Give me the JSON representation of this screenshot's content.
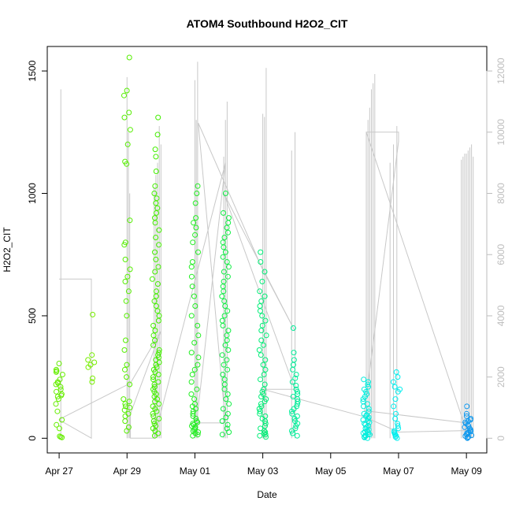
{
  "chart_data": {
    "type": "scatter",
    "title": "ATOM4 Southbound H2O2_CIT",
    "xlabel": "Date",
    "ylabel": "H2O2_CIT",
    "x_tick_labels": [
      "Apr 27",
      "Apr 29",
      "May 01",
      "May 03",
      "May 05",
      "May 07",
      "May 09"
    ],
    "x_tick_days": [
      0,
      2,
      4,
      6,
      8,
      10,
      12
    ],
    "xlim_days": [
      -0.35,
      12.6
    ],
    "ylim": [
      -60,
      1600
    ],
    "y_ticks": [
      0,
      500,
      1000,
      1500
    ],
    "y2_ticks": [
      0,
      2000,
      4000,
      6000,
      8000,
      10000,
      12000
    ],
    "y2_lim": [
      -480,
      12800
    ],
    "y2_color": "#bdbdbd",
    "grid": false,
    "point_series": [
      {
        "x_day": 0.0,
        "color": "#66ee00",
        "y_values": [
          5,
          8,
          3,
          40,
          55,
          75,
          110,
          140,
          160,
          170,
          175,
          180,
          190,
          200,
          210,
          220,
          225,
          230,
          240,
          260,
          270,
          275,
          280,
          305
        ]
      },
      {
        "x_day": 0.95,
        "color": "#77ee00",
        "y_values": [
          230,
          245,
          290,
          300,
          310,
          320,
          340,
          505
        ]
      },
      {
        "x_day": 2.0,
        "color": "#55ee00",
        "y_values": [
          30,
          45,
          70,
          90,
          100,
          115,
          125,
          130,
          140,
          150,
          160,
          220,
          250,
          280,
          300,
          360,
          400,
          500,
          560,
          600,
          640,
          660,
          690,
          730,
          790,
          800,
          890,
          1120,
          1130,
          1200,
          1260,
          1310,
          1330,
          1400,
          1420,
          1555
        ]
      },
      {
        "x_day": 2.85,
        "color": "#44ee00",
        "y_values": [
          10,
          20,
          30,
          40,
          50,
          60,
          70,
          80,
          90,
          100,
          110,
          120,
          130,
          140,
          150,
          160,
          170,
          180,
          190,
          200,
          210,
          220,
          230,
          240,
          250,
          260,
          270,
          280,
          290,
          300,
          310,
          320,
          330,
          340,
          350,
          360,
          380,
          400,
          420,
          440,
          460,
          480,
          500,
          520,
          540,
          560,
          580,
          600,
          630,
          650,
          680,
          700,
          730,
          760,
          790,
          820,
          850,
          880,
          900,
          920,
          940,
          960,
          980,
          1000,
          1030,
          1090,
          1150,
          1180,
          1240,
          1310
        ]
      },
      {
        "x_day": 4.0,
        "color": "#22ee22",
        "y_values": [
          10,
          15,
          20,
          25,
          30,
          35,
          40,
          45,
          50,
          55,
          60,
          65,
          70,
          80,
          90,
          100,
          110,
          120,
          130,
          140,
          160,
          180,
          200,
          230,
          260,
          280,
          300,
          330,
          350,
          390,
          420,
          460,
          500,
          540,
          580,
          620,
          660,
          700,
          720,
          760,
          800,
          830,
          860,
          880,
          900,
          960,
          1000,
          1030
        ]
      },
      {
        "x_day": 4.9,
        "color": "#11ee44",
        "y_values": [
          15,
          25,
          40,
          55,
          70,
          85,
          100,
          120,
          140,
          160,
          180,
          200,
          220,
          240,
          260,
          280,
          300,
          320,
          340,
          360,
          380,
          400,
          420,
          440,
          460,
          480,
          500,
          520,
          540,
          560,
          580,
          600,
          620,
          640,
          660,
          680,
          700,
          720,
          740,
          760,
          780,
          800,
          820,
          840,
          860,
          880,
          900,
          920,
          1000
        ]
      },
      {
        "x_day": 6.0,
        "color": "#00ee77",
        "y_values": [
          5,
          10,
          15,
          20,
          25,
          30,
          40,
          50,
          60,
          70,
          80,
          90,
          100,
          110,
          120,
          130,
          140,
          150,
          160,
          170,
          180,
          190,
          200,
          220,
          240,
          260,
          280,
          300,
          320,
          340,
          360,
          380,
          400,
          420,
          440,
          460,
          480,
          500,
          520,
          540,
          560,
          580,
          600,
          640,
          680,
          720,
          760
        ]
      },
      {
        "x_day": 6.95,
        "color": "#00ee99",
        "y_values": [
          10,
          20,
          30,
          40,
          50,
          60,
          70,
          80,
          90,
          100,
          110,
          120,
          130,
          140,
          150,
          160,
          170,
          180,
          190,
          200,
          215,
          230,
          245,
          260,
          280,
          300,
          320,
          350,
          450
        ]
      },
      {
        "x_day": 9.05,
        "color": "#00eedd",
        "y_values": [
          0,
          3,
          6,
          9,
          12,
          15,
          18,
          21,
          24,
          27,
          30,
          35,
          40,
          45,
          50,
          55,
          60,
          65,
          70,
          75,
          80,
          85,
          90,
          95,
          100,
          110,
          120,
          130,
          140,
          150,
          160,
          170,
          180,
          190,
          200,
          210,
          220,
          230,
          240
        ]
      },
      {
        "x_day": 9.95,
        "color": "#00eeee",
        "y_values": [
          0,
          5,
          10,
          15,
          20,
          25,
          30,
          40,
          50,
          60,
          80,
          100,
          130,
          160,
          190,
          200,
          210,
          230,
          250,
          270
        ]
      },
      {
        "x_day": 12.05,
        "color": "#1199ee",
        "y_values": [
          0,
          3,
          6,
          9,
          12,
          15,
          18,
          21,
          24,
          27,
          30,
          35,
          40,
          45,
          50,
          55,
          60,
          65,
          70,
          75,
          80,
          90,
          100,
          130
        ]
      }
    ],
    "secondary_series": {
      "color": "#c8c8c8",
      "spikes": [
        {
          "x_day": 0.05,
          "y2": 11400
        },
        {
          "x_day": 0.95,
          "y2": 0
        },
        {
          "x_day": 2.0,
          "y2": 11800
        },
        {
          "x_day": 2.04,
          "y2": 10000
        },
        {
          "x_day": 2.08,
          "y2": 8000
        },
        {
          "x_day": 2.8,
          "y2": 8200
        },
        {
          "x_day": 2.85,
          "y2": 8600
        },
        {
          "x_day": 2.9,
          "y2": 9000
        },
        {
          "x_day": 2.95,
          "y2": 10200
        },
        {
          "x_day": 3.0,
          "y2": 9600
        },
        {
          "x_day": 4.0,
          "y2": 11700
        },
        {
          "x_day": 4.04,
          "y2": 10400
        },
        {
          "x_day": 4.08,
          "y2": 12300
        },
        {
          "x_day": 4.85,
          "y2": 9200
        },
        {
          "x_day": 4.9,
          "y2": 10400
        },
        {
          "x_day": 4.95,
          "y2": 11000
        },
        {
          "x_day": 6.0,
          "y2": 10600
        },
        {
          "x_day": 6.05,
          "y2": 10500
        },
        {
          "x_day": 6.1,
          "y2": 12100
        },
        {
          "x_day": 6.85,
          "y2": 9400
        },
        {
          "x_day": 6.95,
          "y2": 10000
        },
        {
          "x_day": 9.05,
          "y2": 10000
        },
        {
          "x_day": 9.1,
          "y2": 10400
        },
        {
          "x_day": 9.15,
          "y2": 10800
        },
        {
          "x_day": 9.2,
          "y2": 11400
        },
        {
          "x_day": 9.25,
          "y2": 11600
        },
        {
          "x_day": 9.3,
          "y2": 11900
        },
        {
          "x_day": 9.75,
          "y2": 9000
        },
        {
          "x_day": 9.85,
          "y2": 9600
        },
        {
          "x_day": 9.95,
          "y2": 10200
        },
        {
          "x_day": 11.85,
          "y2": 9100
        },
        {
          "x_day": 11.9,
          "y2": 9200
        },
        {
          "x_day": 11.95,
          "y2": 9300
        },
        {
          "x_day": 12.0,
          "y2": 9300
        },
        {
          "x_day": 12.05,
          "y2": 9400
        },
        {
          "x_day": 12.1,
          "y2": 9500
        },
        {
          "x_day": 12.15,
          "y2": 9600
        },
        {
          "x_day": 12.2,
          "y2": 9200
        }
      ],
      "path": [
        {
          "x_day": 0.0,
          "y2": 5200
        },
        {
          "x_day": 0.95,
          "y2": 5200
        },
        {
          "x_day": 0.95,
          "y2": 0
        },
        {
          "x_day": 0.95,
          "y2": 0
        },
        {
          "x_day": 0.0,
          "y2": 600
        },
        {
          "x_day": 0.15,
          "y2": 700
        },
        {
          "x_day": 2.1,
          "y2": 1800
        },
        {
          "x_day": 3.0,
          "y2": 3500
        },
        {
          "x_day": 2.1,
          "y2": 800
        },
        {
          "x_day": 2.1,
          "y2": 0
        },
        {
          "x_day": 2.8,
          "y2": 0
        },
        {
          "x_day": 4.9,
          "y2": 9000
        },
        {
          "x_day": 4.05,
          "y2": 500
        },
        {
          "x_day": 4.9,
          "y2": 500
        },
        {
          "x_day": 4.1,
          "y2": 10300
        },
        {
          "x_day": 6.0,
          "y2": 5500
        },
        {
          "x_day": 6.95,
          "y2": 3500
        },
        {
          "x_day": 4.85,
          "y2": 8000
        },
        {
          "x_day": 6.95,
          "y2": 1600
        },
        {
          "x_day": 6.0,
          "y2": 1600
        },
        {
          "x_day": 9.0,
          "y2": 700
        },
        {
          "x_day": 10.0,
          "y2": 200
        },
        {
          "x_day": 12.0,
          "y2": 250
        },
        {
          "x_day": 9.05,
          "y2": 10000
        },
        {
          "x_day": 10.0,
          "y2": 10000
        },
        {
          "x_day": 10.0,
          "y2": 9700
        },
        {
          "x_day": 9.0,
          "y2": 900
        },
        {
          "x_day": 12.0,
          "y2": 500
        }
      ]
    }
  }
}
